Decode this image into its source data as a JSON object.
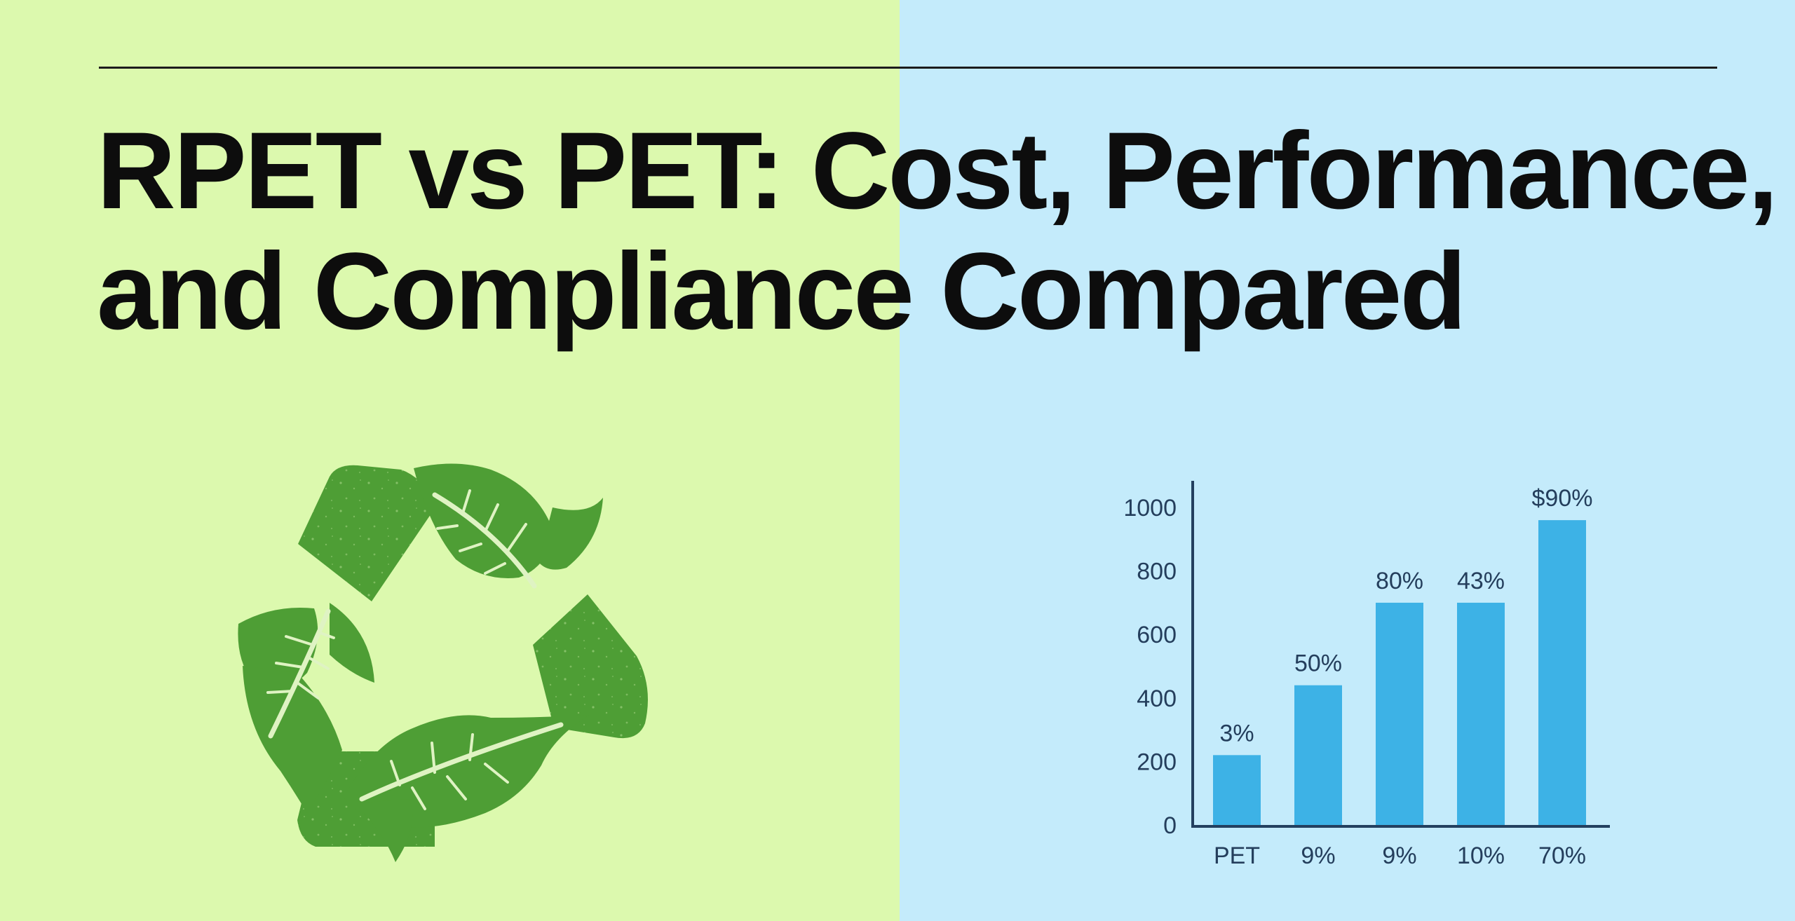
{
  "title": {
    "line1": "RPET vs PET: Cost, Performance,",
    "line2": "and Compliance Compared"
  },
  "colors": {
    "left_panel": "#dcf9ae",
    "right_panel": "#c4ebfb",
    "recycle_green": "#4e9e35",
    "bar_blue": "#3db2e6",
    "axis_dark": "#23405f"
  },
  "icons": {
    "recycle": "recycle-leaves-icon"
  },
  "chart_data": {
    "type": "bar",
    "categories": [
      "PET",
      "9%",
      "9%",
      "10%",
      "70%"
    ],
    "values": [
      220,
      440,
      700,
      700,
      960
    ],
    "data_labels": [
      "3%",
      "50%",
      "80%",
      "43%",
      "$90%"
    ],
    "y_ticks": [
      "0",
      "200",
      "400",
      "600",
      "800",
      "1000"
    ],
    "ylim": [
      0,
      1000
    ],
    "title": "",
    "xlabel": "",
    "ylabel": "",
    "grid": false,
    "legend": "none"
  }
}
